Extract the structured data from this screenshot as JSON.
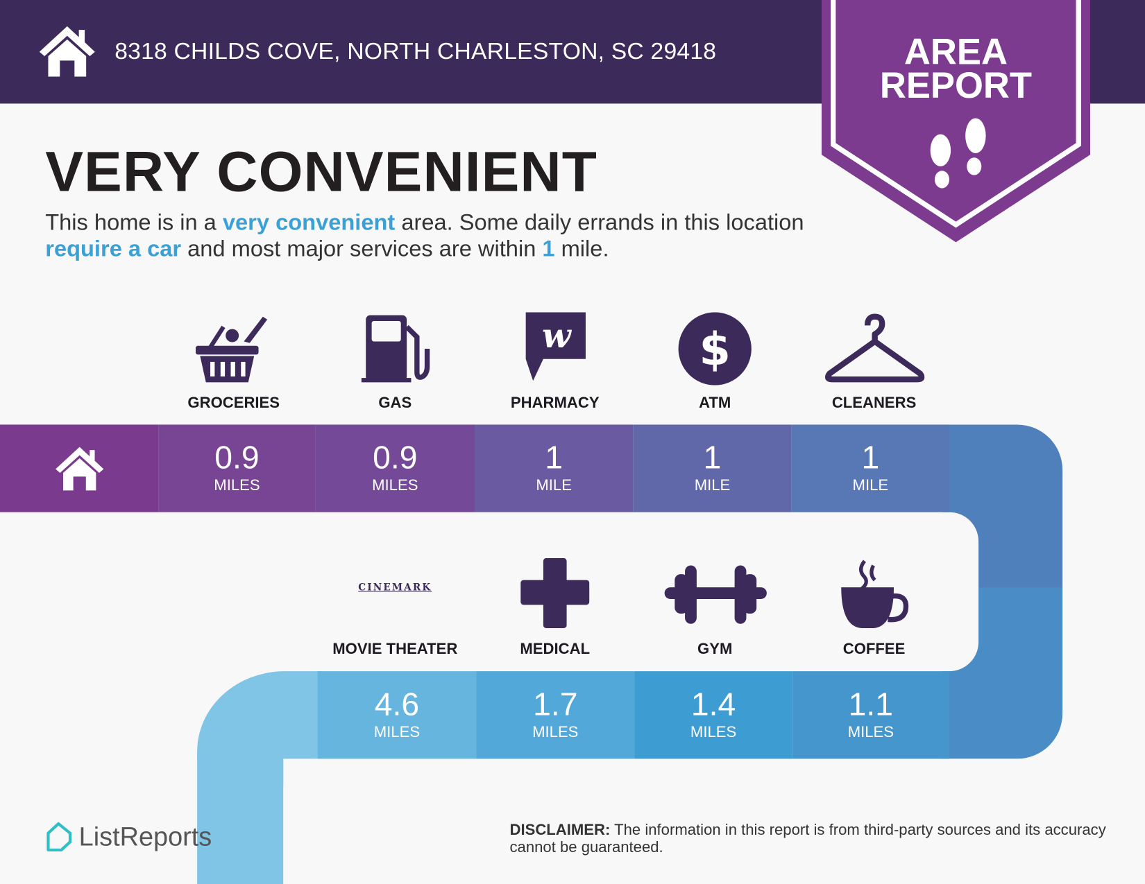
{
  "header": {
    "address": "8318 CHILDS COVE, NORTH CHARLESTON, SC 29418",
    "icon": "home-icon"
  },
  "badge": {
    "line1": "AREA",
    "line2": "REPORT",
    "icon": "footprints-icon"
  },
  "summary": {
    "title": "VERY CONVENIENT",
    "p1": "This home is in a ",
    "h1": "very convenient",
    "p2": " area. Some daily errands in this location ",
    "h2": "require a car",
    "p3": " and most major services are within ",
    "h3": "1",
    "p4": " mile."
  },
  "amenities_row1": [
    {
      "label": "GROCERIES",
      "value": "0.9",
      "unit": "MILES",
      "icon": "grocery-basket-icon"
    },
    {
      "label": "GAS",
      "value": "0.9",
      "unit": "MILES",
      "icon": "gas-pump-icon"
    },
    {
      "label": "PHARMACY",
      "value": "1",
      "unit": "MILE",
      "icon": "walgreens-logo-icon"
    },
    {
      "label": "ATM",
      "value": "1",
      "unit": "MILE",
      "icon": "dollar-icon"
    },
    {
      "label": "CLEANERS",
      "value": "1",
      "unit": "MILE",
      "icon": "hanger-icon"
    }
  ],
  "amenities_row2": [
    {
      "label": "MOVIE THEATER",
      "value": "4.6",
      "unit": "MILES",
      "icon": "cinemark-logo",
      "logo_text": "CINEMARK"
    },
    {
      "label": "MEDICAL",
      "value": "1.7",
      "unit": "MILES",
      "icon": "medical-cross-icon"
    },
    {
      "label": "GYM",
      "value": "1.4",
      "unit": "MILES",
      "icon": "dumbbell-icon"
    },
    {
      "label": "COFFEE",
      "value": "1.1",
      "unit": "MILES",
      "icon": "coffee-cup-icon"
    }
  ],
  "footer": {
    "brand": "ListReports",
    "disclaimer_label": "DISCLAIMER:",
    "disclaimer_text": " The information in this report is from third-party sources and its accuracy cannot be guaranteed."
  },
  "colors": {
    "header": "#3c2a5a",
    "badge": "#7d3b8f",
    "highlight": "#3aa0d5",
    "icon": "#3c2a5a"
  }
}
